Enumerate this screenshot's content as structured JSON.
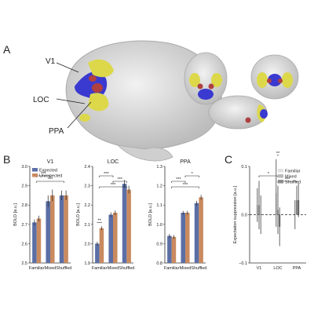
{
  "panels": {
    "a": "A",
    "b": "B",
    "c": "C"
  },
  "brain_labels": {
    "v1": "V1",
    "loc": "LOC",
    "ppa": "PPA"
  },
  "colors": {
    "expected": "#5b6fa6",
    "unexpected": "#c98a5f",
    "v1_region": "#3a3ad0",
    "loc_region": "#dcd84a",
    "ppa_region": "#b04040",
    "c_familiar": "#e0e0e0",
    "c_mixed": "#b9b9b9",
    "c_shuffled": "#8d8d8d"
  },
  "chart_data": [
    {
      "type": "bar",
      "title": "V1",
      "ylabel": "BOLD [a.u.]",
      "categories": [
        "Familiar",
        "Mixed",
        "Shuffled"
      ],
      "ylim": [
        2.5,
        3.0
      ],
      "yticks": [
        "2.5",
        "2.6",
        "2.7",
        "2.8",
        "2.9",
        "3.0"
      ],
      "series": [
        {
          "name": "Expected",
          "values": [
            2.71,
            2.82,
            2.85
          ],
          "errors": [
            0.015,
            0.03,
            0.025
          ]
        },
        {
          "name": "Unexpected",
          "values": [
            2.73,
            2.85,
            2.85
          ],
          "errors": [
            0.015,
            0.03,
            0.025
          ]
        }
      ],
      "annotations": [
        {
          "from": 0,
          "to": 1,
          "label": "***"
        },
        {
          "from": 0,
          "to": 2,
          "label": "***"
        }
      ],
      "legend": "top-left"
    },
    {
      "type": "bar",
      "title": "LOC",
      "ylabel": "BOLD [a.u.]",
      "categories": [
        "Familiar",
        "Mixed",
        "Shuffled"
      ],
      "ylim": [
        1.9,
        2.4
      ],
      "yticks": [
        "1.9",
        "2.0",
        "2.1",
        "2.2",
        "2.3",
        "2.4"
      ],
      "series": [
        {
          "name": "Expected",
          "values": [
            2.0,
            2.15,
            2.31
          ],
          "errors": [
            0.01,
            0.012,
            0.02
          ]
        },
        {
          "name": "Unexpected",
          "values": [
            2.08,
            2.16,
            2.28
          ],
          "errors": [
            0.01,
            0.012,
            0.02
          ]
        }
      ],
      "annotations": [
        {
          "within": 0,
          "label": "**"
        },
        {
          "from": 0,
          "to": 1,
          "label": "***"
        },
        {
          "from": 1,
          "to": 2,
          "label": "***"
        },
        {
          "from": 0,
          "to": 2,
          "label": "***"
        }
      ]
    },
    {
      "type": "bar",
      "title": "PPA",
      "ylabel": "BOLD [a.u.]",
      "categories": [
        "Familiar",
        "Mixed",
        "Shuffled"
      ],
      "ylim": [
        0.8,
        1.3
      ],
      "yticks": [
        "0.8",
        "0.9",
        "1.0",
        "1.1",
        "1.2",
        "1.3"
      ],
      "series": [
        {
          "name": "Expected",
          "values": [
            0.94,
            1.06,
            1.11
          ],
          "errors": [
            0.01,
            0.01,
            0.012
          ]
        },
        {
          "name": "Unexpected",
          "values": [
            0.935,
            1.06,
            1.14
          ],
          "errors": [
            0.01,
            0.01,
            0.012
          ]
        }
      ],
      "annotations": [
        {
          "from": 1,
          "to": 2,
          "label": "*"
        },
        {
          "from": 0,
          "to": 1,
          "label": "***"
        },
        {
          "from": 0,
          "to": 2,
          "label": "***"
        }
      ]
    },
    {
      "type": "bar",
      "ylabel": "Expectation suppression [a.u.]",
      "categories": [
        "V1",
        "LOC",
        "PPA"
      ],
      "ylim": [
        -0.1,
        0.1
      ],
      "yticks": [
        "−0.1",
        "0.0",
        "0.1"
      ],
      "series": [
        {
          "name": "Familiar",
          "values": [
            0.02,
            0.045,
            0.0
          ],
          "errors": [
            0.035,
            0.07,
            0.03
          ]
        },
        {
          "name": "Mixed",
          "values": [
            0.02,
            0.01,
            0.03
          ],
          "errors": [
            0.05,
            0.05,
            0.03
          ]
        },
        {
          "name": "Shuffled",
          "values": [
            0.0,
            -0.025,
            0.03
          ],
          "errors": [
            0.04,
            0.04,
            0.035
          ]
        }
      ],
      "annotations": [
        {
          "from": 0,
          "to": 1,
          "label": "*"
        },
        {
          "from": 1,
          "to": 2,
          "label": "***"
        },
        {
          "within": 1,
          "label": "**"
        }
      ],
      "legend": "top-right"
    }
  ]
}
